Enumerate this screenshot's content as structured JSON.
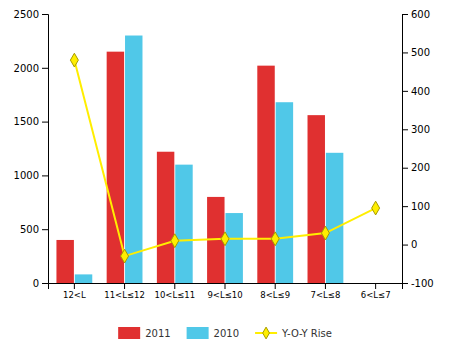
{
  "chart_data": {
    "type": "bar",
    "categories": [
      "12<L",
      "11<L≤12",
      "10<L≤11",
      "9<L≤10",
      "8<L≤9",
      "7<L≤8",
      "6<L≤7"
    ],
    "series": [
      {
        "name": "2011",
        "color": "#e03030",
        "values": [
          400,
          2150,
          1220,
          800,
          2020,
          1560,
          0
        ]
      },
      {
        "name": "2010",
        "color": "#50c8e8",
        "values": [
          80,
          2300,
          1100,
          650,
          1680,
          1210,
          0
        ]
      },
      {
        "name": "Y-O-Y Rise",
        "type": "line",
        "axis": "y2",
        "color": "#ffee00",
        "marker": "diamond",
        "values": [
          480,
          -30,
          10,
          15,
          15,
          30,
          95
        ]
      }
    ],
    "ylim": [
      0,
      2500
    ],
    "yticks": [
      0,
      500,
      1000,
      1500,
      2000,
      2500
    ],
    "y2lim": [
      -100,
      600
    ],
    "y2ticks": [
      -100,
      0,
      100,
      200,
      300,
      400,
      500,
      600
    ],
    "grid": false,
    "legend": "bottom"
  }
}
